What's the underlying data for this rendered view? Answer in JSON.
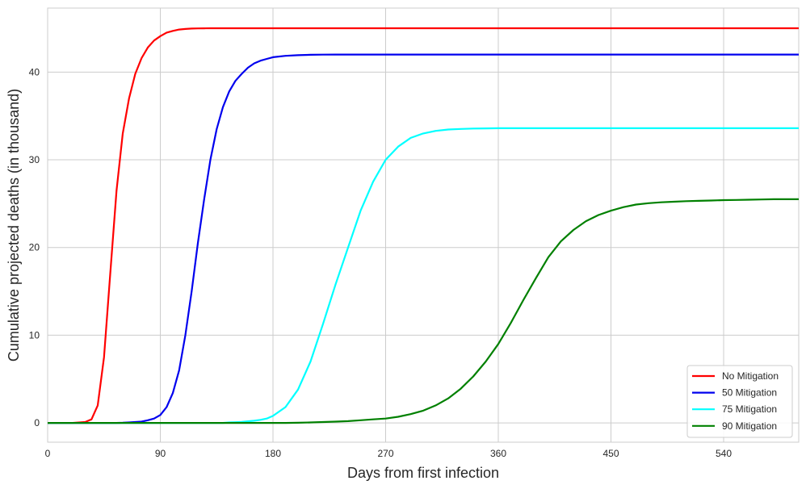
{
  "chart_data": {
    "type": "line",
    "title": "",
    "xlabel": "Days from first infection",
    "ylabel": "Cumulative projected deaths (in thousand)",
    "xlim": [
      0,
      600
    ],
    "ylim": [
      -2.2,
      47.3
    ],
    "x_ticks": [
      0,
      90,
      180,
      270,
      360,
      450,
      540
    ],
    "y_ticks": [
      0,
      10,
      20,
      30,
      40
    ],
    "grid": true,
    "legend_position": "lower-right",
    "x": [
      0,
      10,
      20,
      30,
      35,
      40,
      45,
      50,
      55,
      60,
      65,
      70,
      75,
      80,
      85,
      90,
      95,
      100,
      105,
      110,
      115,
      120,
      125,
      130,
      135,
      140,
      145,
      150,
      155,
      160,
      165,
      170,
      175,
      180,
      190,
      200,
      210,
      220,
      230,
      240,
      250,
      260,
      270,
      280,
      290,
      300,
      310,
      320,
      330,
      340,
      350,
      360,
      370,
      380,
      390,
      400,
      410,
      420,
      430,
      440,
      450,
      460,
      470,
      480,
      490,
      500,
      510,
      520,
      530,
      540,
      550,
      560,
      570,
      580,
      590,
      600
    ],
    "series": [
      {
        "name": "No Mitigation",
        "color": "#ff0000",
        "values": [
          0,
          0,
          0,
          0.1,
          0.4,
          2.0,
          7.5,
          17.0,
          26.5,
          33.0,
          37.0,
          39.8,
          41.6,
          42.8,
          43.6,
          44.1,
          44.5,
          44.7,
          44.85,
          44.92,
          44.96,
          44.98,
          44.99,
          45,
          45,
          45,
          45,
          45,
          45,
          45,
          45,
          45,
          45,
          45,
          45,
          45,
          45,
          45,
          45,
          45,
          45,
          45,
          45,
          45,
          45,
          45,
          45,
          45,
          45,
          45,
          45,
          45,
          45,
          45,
          45,
          45,
          45,
          45,
          45,
          45,
          45,
          45,
          45,
          45,
          45,
          45,
          45,
          45,
          45,
          45,
          45,
          45,
          45,
          45,
          45,
          45
        ]
      },
      {
        "name": "50 Mitigation",
        "color": "#0000ee",
        "values": [
          0,
          0,
          0,
          0,
          0,
          0,
          0,
          0,
          0,
          0.02,
          0.05,
          0.1,
          0.15,
          0.3,
          0.5,
          0.9,
          1.8,
          3.4,
          6.0,
          10.0,
          15.0,
          20.5,
          25.5,
          30.0,
          33.5,
          36.0,
          37.8,
          39.0,
          39.8,
          40.5,
          41.0,
          41.3,
          41.5,
          41.7,
          41.85,
          41.93,
          41.97,
          41.99,
          42,
          42,
          42,
          42,
          42,
          42,
          42,
          42,
          42,
          42,
          42,
          42,
          42,
          42,
          42,
          42,
          42,
          42,
          42,
          42,
          42,
          42,
          42,
          42,
          42,
          42,
          42,
          42,
          42,
          42,
          42,
          42,
          42,
          42,
          42,
          42,
          42,
          42
        ]
      },
      {
        "name": "75 Mitigation",
        "color": "#00ffff",
        "values": [
          0,
          0,
          0,
          0,
          0,
          0,
          0,
          0,
          0,
          0,
          0,
          0,
          0,
          0,
          0,
          0,
          0,
          0,
          0,
          0,
          0,
          0,
          0,
          0,
          0,
          0,
          0.05,
          0.08,
          0.12,
          0.18,
          0.25,
          0.35,
          0.5,
          0.8,
          1.8,
          3.8,
          7.0,
          11.3,
          15.8,
          20.0,
          24.2,
          27.5,
          30.0,
          31.5,
          32.5,
          33.0,
          33.3,
          33.45,
          33.52,
          33.56,
          33.58,
          33.6,
          33.6,
          33.6,
          33.6,
          33.6,
          33.6,
          33.6,
          33.6,
          33.6,
          33.6,
          33.6,
          33.6,
          33.6,
          33.6,
          33.6,
          33.6,
          33.6,
          33.6,
          33.6,
          33.6,
          33.6,
          33.6,
          33.6,
          33.6,
          33.6
        ]
      },
      {
        "name": "90 Mitigation",
        "color": "#008000",
        "values": [
          0,
          0,
          0,
          0,
          0,
          0,
          0,
          0,
          0,
          0,
          0,
          0,
          0,
          0,
          0,
          0,
          0,
          0,
          0,
          0,
          0,
          0,
          0,
          0,
          0,
          0,
          0,
          0,
          0,
          0,
          0,
          0,
          0,
          0,
          0,
          0.02,
          0.05,
          0.1,
          0.15,
          0.2,
          0.3,
          0.4,
          0.5,
          0.7,
          1.0,
          1.4,
          2.0,
          2.8,
          3.9,
          5.3,
          7.0,
          9.0,
          11.4,
          14.0,
          16.5,
          18.9,
          20.7,
          22.0,
          23.0,
          23.7,
          24.2,
          24.6,
          24.9,
          25.05,
          25.15,
          25.22,
          25.28,
          25.32,
          25.36,
          25.4,
          25.42,
          25.45,
          25.48,
          25.5,
          25.5,
          25.5
        ]
      }
    ]
  }
}
